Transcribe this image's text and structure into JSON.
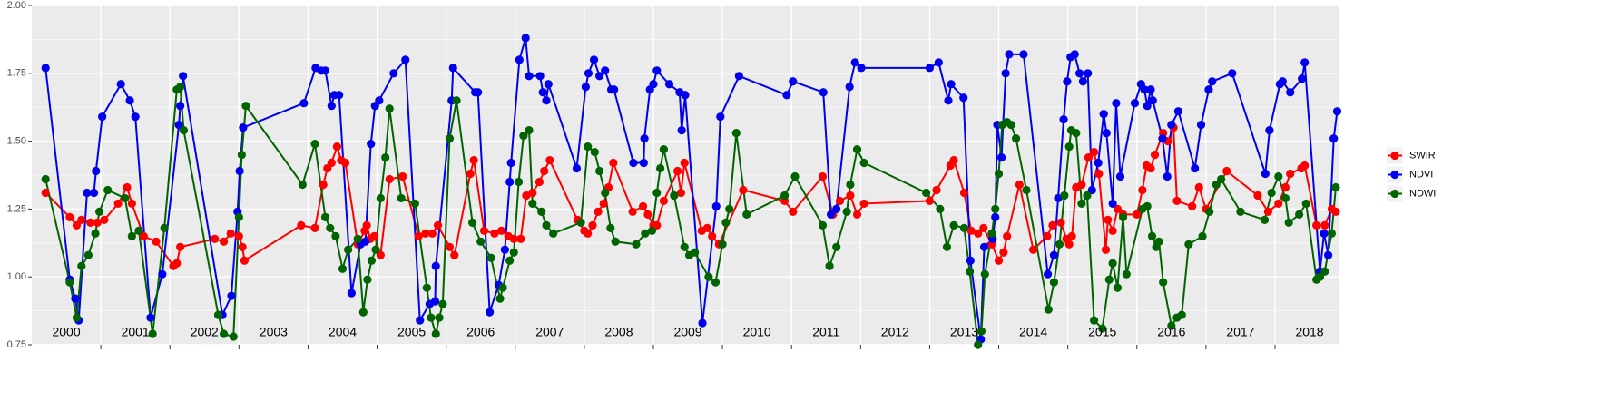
{
  "chart_data": {
    "type": "line",
    "xlim": [
      2000,
      2018.92
    ],
    "ylim": [
      0.75,
      2.0
    ],
    "yticks": [
      0.75,
      {
        "value": 1.0,
        "label": "1.00"
      },
      1.25,
      {
        "value": 1.5,
        "label": "1.50"
      },
      1.75,
      {
        "value": 2.0,
        "label": "2.00"
      }
    ],
    "xticks": [
      2001,
      2002,
      2003,
      2004,
      2005,
      2006,
      2007,
      2008,
      2009,
      2010,
      2011,
      2012,
      2013,
      2014,
      2015,
      2016,
      2017,
      2018
    ],
    "year_labels": [
      "2000",
      "2001",
      "2002",
      "2003",
      "2004",
      "2005",
      "2006",
      "2007",
      "2008",
      "2009",
      "2010",
      "2011",
      "2012",
      "2013",
      "2014",
      "2015",
      "2016",
      "2017",
      "2018"
    ],
    "grid": true,
    "legend_position": "right",
    "series": [
      {
        "name": "SWIR",
        "color": "#ff0000",
        "x": [
          2000.2,
          2000.55,
          2000.65,
          2000.72,
          2000.85,
          2000.95,
          2001.05,
          2001.25,
          2001.38,
          2001.45,
          2001.62,
          2001.8,
          2002.05,
          2002.1,
          2002.15,
          2002.65,
          2002.78,
          2002.88,
          2003.0,
          2003.05,
          2003.08,
          2003.9,
          2004.1,
          2004.22,
          2004.28,
          2004.34,
          2004.42,
          2004.48,
          2004.54,
          2004.72,
          2004.82,
          2004.85,
          2004.9,
          2004.96,
          2005.05,
          2005.18,
          2005.37,
          2005.6,
          2005.7,
          2005.8,
          2005.88,
          2006.05,
          2006.12,
          2006.35,
          2006.4,
          2006.55,
          2006.7,
          2006.8,
          2006.9,
          2006.98,
          2007.08,
          2007.16,
          2007.25,
          2007.35,
          2007.42,
          2007.5,
          2007.9,
          2008.0,
          2008.05,
          2008.12,
          2008.2,
          2008.28,
          2008.35,
          2008.42,
          2008.7,
          2008.85,
          2008.92,
          2009.0,
          2009.05,
          2009.15,
          2009.35,
          2009.4,
          2009.45,
          2009.7,
          2009.78,
          2009.85,
          2009.95,
          2010.3,
          2010.9,
          2011.02,
          2011.45,
          2011.6,
          2011.7,
          2011.85,
          2011.95,
          2012.05,
          2013.0,
          2013.1,
          2013.3,
          2013.35,
          2013.5,
          2013.6,
          2013.7,
          2013.78,
          2013.9,
          2014.0,
          2014.07,
          2014.12,
          2014.3,
          2014.5,
          2014.7,
          2014.78,
          2014.9,
          2014.98,
          2015.02,
          2015.06,
          2015.12,
          2015.2,
          2015.3,
          2015.38,
          2015.45,
          2015.55,
          2015.58,
          2015.65,
          2015.72,
          2015.8,
          2016.0,
          2016.08,
          2016.14,
          2016.2,
          2016.26,
          2016.38,
          2016.45,
          2016.53,
          2016.58,
          2016.8,
          2016.9,
          2017.0,
          2017.3,
          2017.75,
          2017.9,
          2018.05,
          2018.15,
          2018.22,
          2018.38,
          2018.43,
          2018.6,
          2018.72,
          2018.82,
          2018.88
        ],
        "values": [
          1.31,
          1.22,
          1.19,
          1.21,
          1.2,
          1.2,
          1.21,
          1.27,
          1.33,
          1.27,
          1.15,
          1.13,
          1.04,
          1.05,
          1.11,
          1.14,
          1.13,
          1.16,
          1.15,
          1.11,
          1.06,
          1.19,
          1.18,
          1.34,
          1.4,
          1.42,
          1.48,
          1.43,
          1.42,
          1.12,
          1.17,
          1.19,
          1.14,
          1.15,
          1.08,
          1.36,
          1.37,
          1.15,
          1.16,
          1.16,
          1.19,
          1.11,
          1.08,
          1.38,
          1.43,
          1.17,
          1.16,
          1.17,
          1.15,
          1.14,
          1.14,
          1.3,
          1.31,
          1.35,
          1.39,
          1.43,
          1.21,
          1.17,
          1.16,
          1.19,
          1.24,
          1.27,
          1.33,
          1.42,
          1.24,
          1.26,
          1.23,
          1.19,
          1.19,
          1.28,
          1.39,
          1.31,
          1.42,
          1.17,
          1.18,
          1.15,
          1.12,
          1.32,
          1.28,
          1.24,
          1.37,
          1.23,
          1.28,
          1.3,
          1.23,
          1.27,
          1.28,
          1.32,
          1.41,
          1.43,
          1.31,
          1.17,
          1.16,
          1.18,
          1.12,
          1.06,
          1.09,
          1.15,
          1.34,
          1.1,
          1.15,
          1.19,
          1.2,
          1.14,
          1.12,
          1.15,
          1.33,
          1.34,
          1.44,
          1.46,
          1.38,
          1.1,
          1.21,
          1.17,
          1.25,
          1.23,
          1.23,
          1.32,
          1.41,
          1.4,
          1.45,
          1.53,
          1.5,
          1.55,
          1.28,
          1.26,
          1.33,
          1.25,
          1.39,
          1.3,
          1.24,
          1.27,
          1.33,
          1.38,
          1.4,
          1.41,
          1.19,
          1.19,
          1.25,
          1.24
        ]
      },
      {
        "name": "NDVI",
        "color": "#0000ee",
        "x": [
          2000.2,
          2000.55,
          2000.63,
          2000.68,
          2000.8,
          2000.9,
          2000.93,
          2001.02,
          2001.29,
          2001.42,
          2001.5,
          2001.72,
          2001.89,
          2002.13,
          2002.15,
          2002.19,
          2002.76,
          2002.89,
          2002.98,
          2003.01,
          2003.06,
          2003.94,
          2004.11,
          2004.19,
          2004.25,
          2004.34,
          2004.38,
          2004.45,
          2004.63,
          2004.76,
          2004.83,
          2004.91,
          2004.97,
          2005.03,
          2005.24,
          2005.41,
          2005.62,
          2005.76,
          2005.84,
          2005.85,
          2006.08,
          2006.1,
          2006.42,
          2006.46,
          2006.63,
          2006.76,
          2006.85,
          2006.92,
          2006.94,
          2007.06,
          2007.15,
          2007.2,
          2007.36,
          2007.4,
          2007.45,
          2007.48,
          2007.89,
          2008.02,
          2008.06,
          2008.14,
          2008.22,
          2008.3,
          2008.39,
          2008.43,
          2008.71,
          2008.86,
          2008.87,
          2008.95,
          2009.0,
          2009.05,
          2009.23,
          2009.38,
          2009.41,
          2009.46,
          2009.71,
          2009.91,
          2009.97,
          2010.24,
          2010.93,
          2011.02,
          2011.46,
          2011.57,
          2011.65,
          2011.84,
          2011.92,
          2012.01,
          2013.0,
          2013.13,
          2013.27,
          2013.31,
          2013.49,
          2013.59,
          2013.74,
          2013.79,
          2013.91,
          2013.95,
          2013.98,
          2014.04,
          2014.1,
          2014.15,
          2014.36,
          2014.71,
          2014.8,
          2014.86,
          2014.94,
          2014.99,
          2015.04,
          2015.1,
          2015.17,
          2015.22,
          2015.29,
          2015.35,
          2015.44,
          2015.52,
          2015.56,
          2015.65,
          2015.7,
          2015.76,
          2015.97,
          2016.06,
          2016.11,
          2016.15,
          2016.2,
          2016.23,
          2016.37,
          2016.44,
          2016.5,
          2016.6,
          2016.84,
          2016.93,
          2017.04,
          2017.09,
          2017.38,
          2017.86,
          2017.92,
          2018.07,
          2018.11,
          2018.22,
          2018.39,
          2018.43,
          2018.65,
          2018.71,
          2018.77,
          2018.85,
          2018.9
        ],
        "values": [
          1.77,
          0.99,
          0.92,
          0.84,
          1.31,
          1.31,
          1.39,
          1.59,
          1.71,
          1.65,
          1.59,
          0.85,
          1.01,
          1.56,
          1.63,
          1.74,
          0.86,
          0.93,
          1.24,
          1.39,
          1.55,
          1.64,
          1.77,
          1.76,
          1.76,
          1.63,
          1.67,
          1.67,
          0.94,
          1.12,
          1.13,
          1.49,
          1.63,
          1.65,
          1.75,
          1.8,
          0.84,
          0.9,
          0.91,
          1.04,
          1.65,
          1.77,
          1.68,
          1.68,
          0.87,
          0.97,
          1.1,
          1.35,
          1.42,
          1.8,
          1.88,
          1.74,
          1.74,
          1.68,
          1.65,
          1.71,
          1.4,
          1.7,
          1.75,
          1.8,
          1.74,
          1.76,
          1.69,
          1.69,
          1.42,
          1.42,
          1.51,
          1.69,
          1.71,
          1.76,
          1.71,
          1.68,
          1.54,
          1.67,
          0.83,
          1.26,
          1.59,
          1.74,
          1.67,
          1.72,
          1.68,
          1.23,
          1.25,
          1.7,
          1.79,
          1.77,
          1.77,
          1.79,
          1.65,
          1.71,
          1.66,
          1.06,
          0.77,
          1.11,
          1.14,
          1.22,
          1.56,
          1.44,
          1.75,
          1.82,
          1.82,
          1.01,
          1.08,
          1.29,
          1.58,
          1.72,
          1.81,
          1.82,
          1.75,
          1.72,
          1.75,
          1.32,
          1.42,
          1.6,
          1.53,
          1.27,
          1.64,
          1.37,
          1.64,
          1.71,
          1.69,
          1.63,
          1.69,
          1.65,
          1.51,
          1.37,
          1.56,
          1.61,
          1.4,
          1.56,
          1.69,
          1.72,
          1.75,
          1.38,
          1.54,
          1.71,
          1.72,
          1.68,
          1.73,
          1.79,
          1.02,
          1.16,
          1.08,
          1.51,
          1.61
        ]
      },
      {
        "name": "NDWI",
        "color": "#006400",
        "x": [
          2000.2,
          2000.55,
          2000.65,
          2000.72,
          2000.82,
          2000.92,
          2000.98,
          2001.1,
          2001.35,
          2001.45,
          2001.55,
          2001.75,
          2001.92,
          2002.1,
          2002.15,
          2002.2,
          2002.7,
          2002.78,
          2002.92,
          2003.0,
          2003.04,
          2003.1,
          2003.92,
          2004.1,
          2004.25,
          2004.32,
          2004.4,
          2004.5,
          2004.58,
          2004.72,
          2004.8,
          2004.86,
          2004.92,
          2004.98,
          2005.05,
          2005.12,
          2005.18,
          2005.35,
          2005.55,
          2005.72,
          2005.78,
          2005.85,
          2005.9,
          2005.95,
          2006.05,
          2006.15,
          2006.38,
          2006.5,
          2006.65,
          2006.78,
          2006.82,
          2006.92,
          2006.98,
          2007.05,
          2007.12,
          2007.2,
          2007.25,
          2007.38,
          2007.45,
          2007.55,
          2007.95,
          2008.05,
          2008.15,
          2008.22,
          2008.3,
          2008.38,
          2008.45,
          2008.75,
          2008.88,
          2008.98,
          2009.05,
          2009.1,
          2009.15,
          2009.3,
          2009.45,
          2009.52,
          2009.6,
          2009.8,
          2009.9,
          2010.0,
          2010.05,
          2010.1,
          2010.2,
          2010.35,
          2010.9,
          2011.05,
          2011.45,
          2011.55,
          2011.65,
          2011.8,
          2011.85,
          2011.95,
          2012.05,
          2012.95,
          2013.15,
          2013.25,
          2013.35,
          2013.5,
          2013.58,
          2013.7,
          2013.75,
          2013.8,
          2013.9,
          2013.95,
          2014.0,
          2014.05,
          2014.12,
          2014.18,
          2014.25,
          2014.4,
          2014.72,
          2014.8,
          2014.88,
          2014.95,
          2015.02,
          2015.05,
          2015.12,
          2015.2,
          2015.28,
          2015.38,
          2015.5,
          2015.6,
          2015.65,
          2015.72,
          2015.8,
          2015.85,
          2016.08,
          2016.15,
          2016.22,
          2016.28,
          2016.32,
          2016.38,
          2016.5,
          2016.58,
          2016.65,
          2016.75,
          2016.95,
          2017.05,
          2017.15,
          2017.22,
          2017.5,
          2017.85,
          2017.95,
          2018.05,
          2018.15,
          2018.2,
          2018.35,
          2018.45,
          2018.6,
          2018.65,
          2018.72,
          2018.82,
          2018.88
        ],
        "values": [
          1.36,
          0.98,
          0.85,
          1.04,
          1.08,
          1.16,
          1.24,
          1.32,
          1.29,
          1.15,
          1.17,
          0.79,
          1.18,
          1.69,
          1.7,
          1.54,
          0.86,
          0.79,
          0.78,
          1.22,
          1.45,
          1.63,
          1.34,
          1.49,
          1.22,
          1.18,
          1.15,
          1.03,
          1.1,
          1.14,
          0.87,
          0.99,
          1.06,
          1.1,
          1.29,
          1.44,
          1.62,
          1.29,
          1.27,
          0.96,
          0.85,
          0.79,
          0.85,
          0.9,
          1.51,
          1.65,
          1.2,
          1.13,
          1.07,
          0.92,
          0.96,
          1.06,
          1.09,
          1.35,
          1.52,
          1.54,
          1.27,
          1.24,
          1.19,
          1.16,
          1.2,
          1.48,
          1.46,
          1.39,
          1.31,
          1.18,
          1.13,
          1.12,
          1.16,
          1.17,
          1.31,
          1.4,
          1.47,
          1.3,
          1.11,
          1.08,
          1.09,
          1.0,
          0.98,
          1.12,
          1.2,
          1.25,
          1.53,
          1.23,
          1.3,
          1.37,
          1.19,
          1.04,
          1.11,
          1.24,
          1.34,
          1.47,
          1.42,
          1.31,
          1.25,
          1.11,
          1.19,
          1.18,
          1.02,
          0.75,
          0.8,
          1.01,
          1.16,
          1.25,
          1.38,
          1.56,
          1.57,
          1.56,
          1.51,
          1.32,
          0.88,
          0.98,
          1.12,
          1.3,
          1.48,
          1.54,
          1.53,
          1.27,
          1.3,
          0.84,
          0.81,
          0.99,
          1.05,
          0.96,
          1.22,
          1.01,
          1.25,
          1.26,
          1.15,
          1.11,
          1.13,
          0.98,
          0.82,
          0.85,
          0.86,
          1.12,
          1.15,
          1.24,
          1.34,
          1.36,
          1.24,
          1.21,
          1.31,
          1.37,
          1.29,
          1.2,
          1.23,
          1.27,
          0.99,
          1.0,
          1.02,
          1.16,
          1.33
        ]
      }
    ]
  }
}
